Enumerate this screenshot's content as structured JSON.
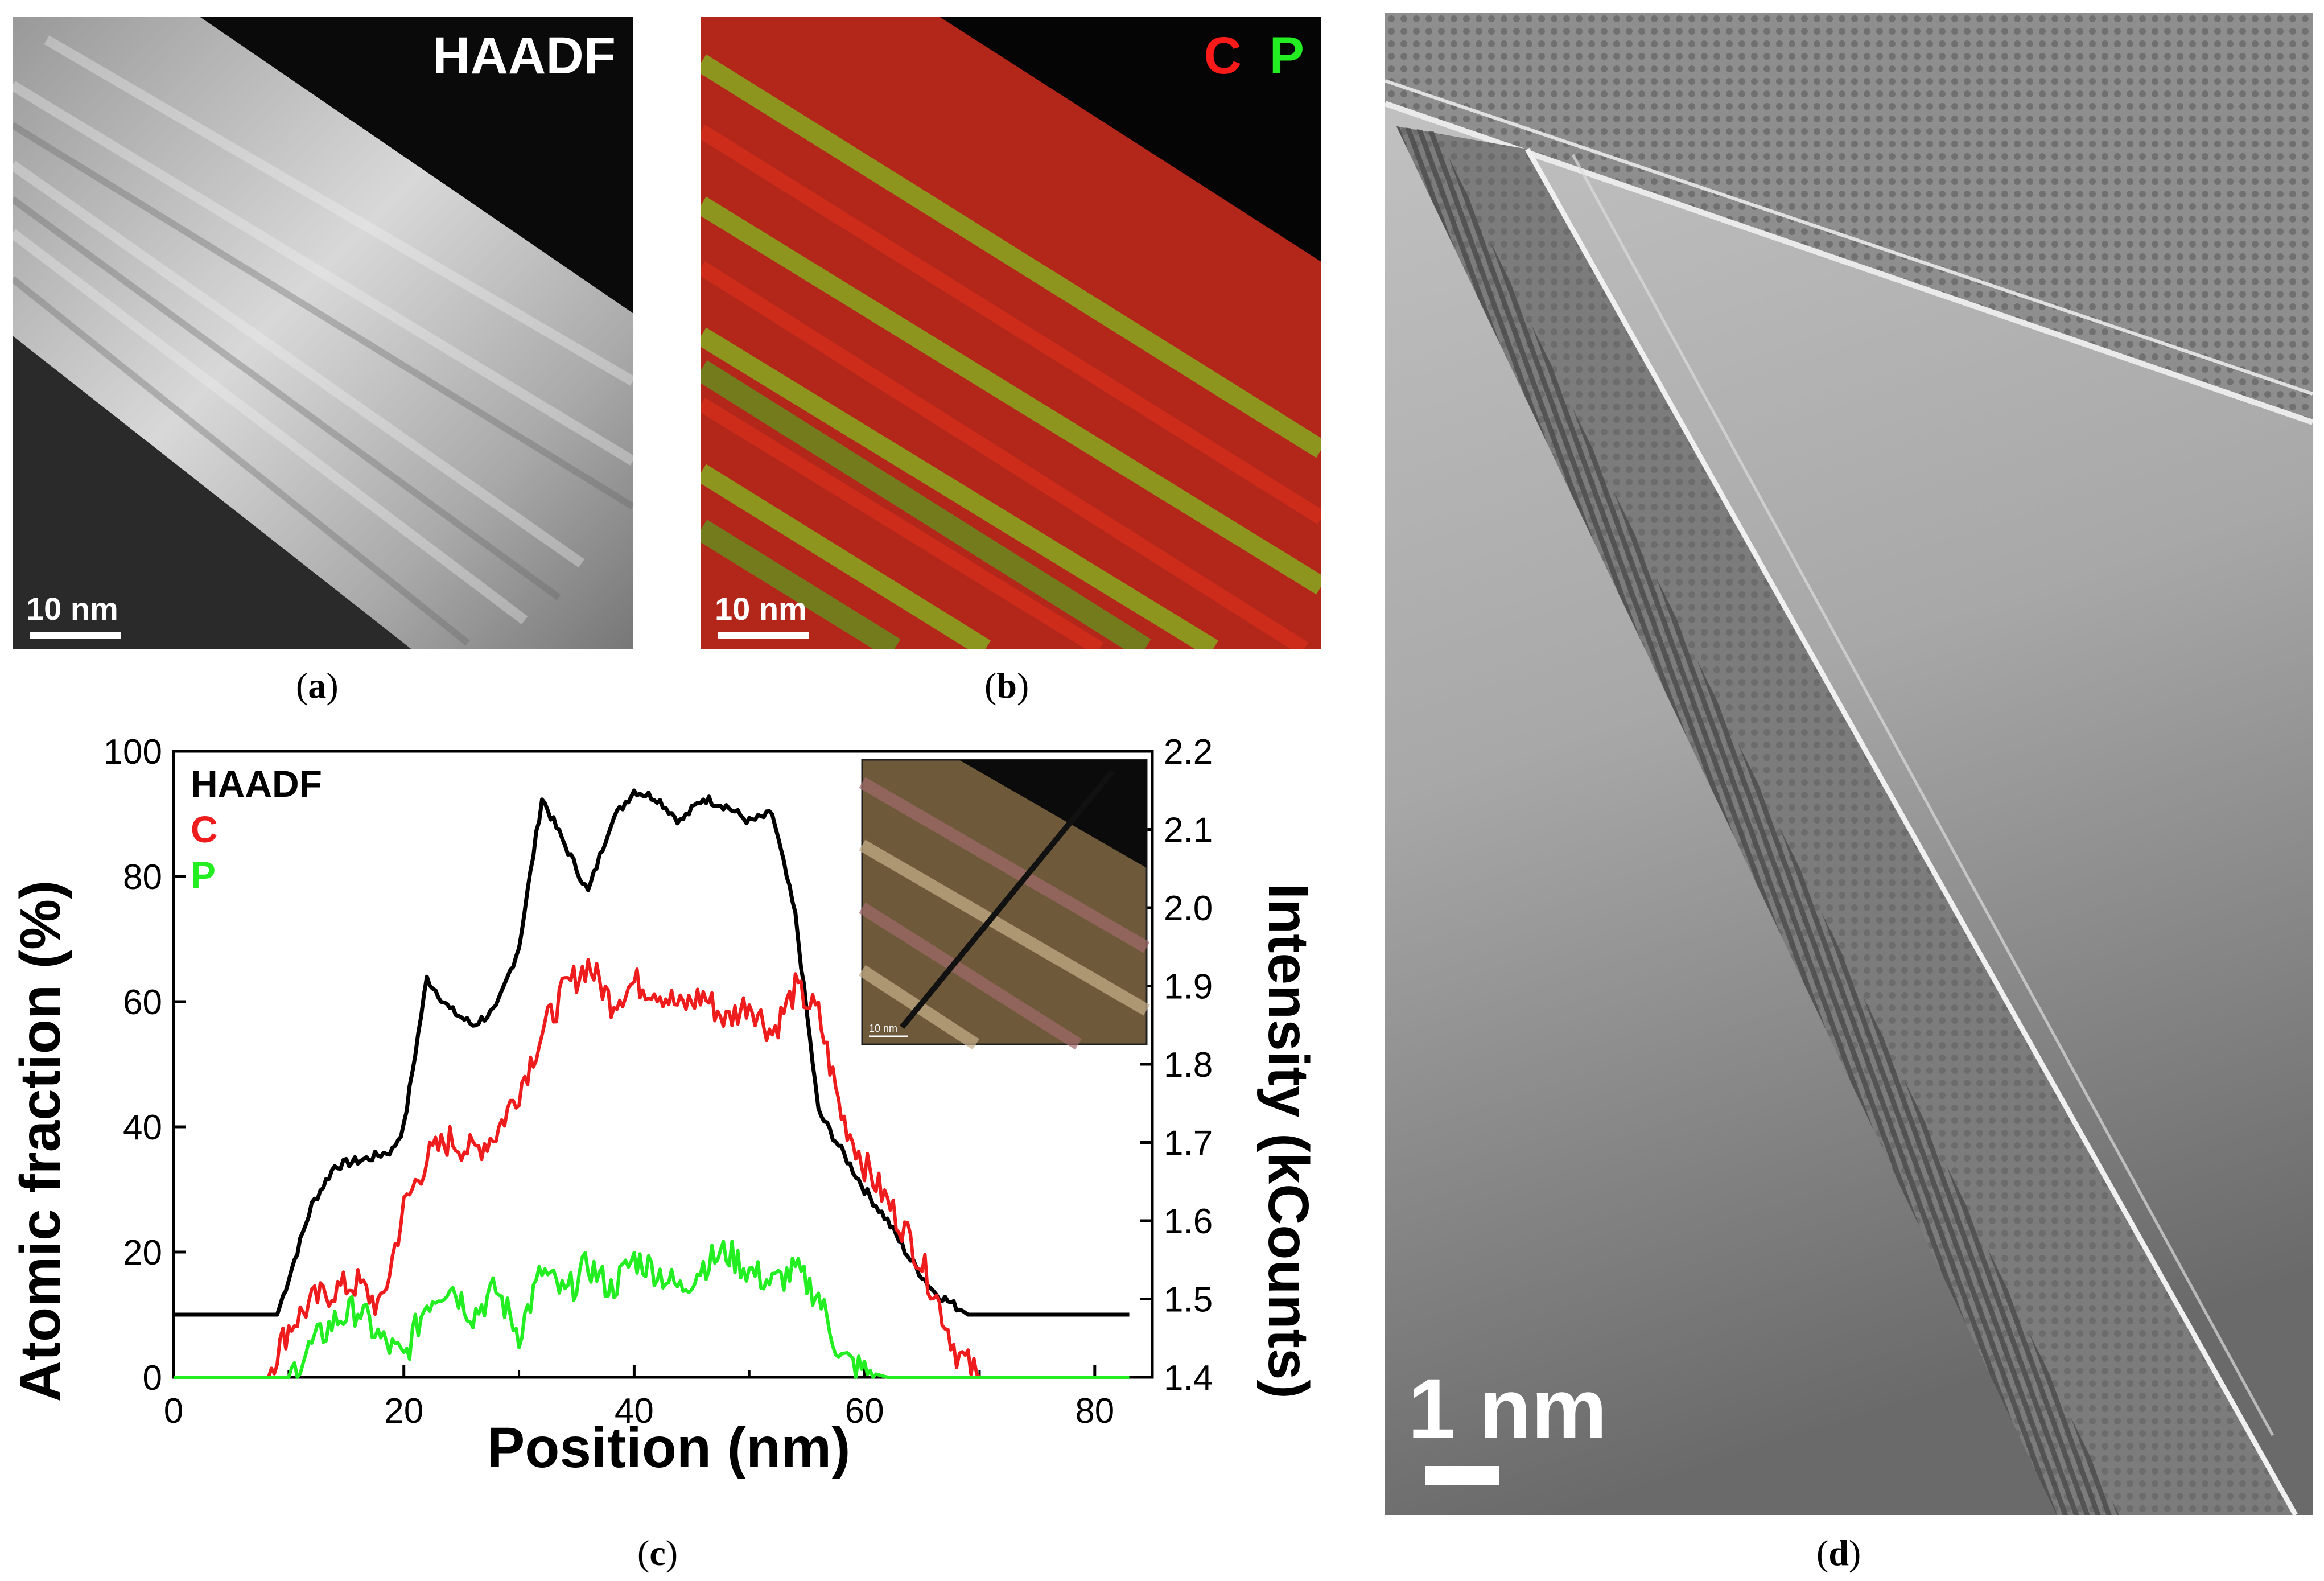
{
  "panel_a": {
    "label": "HAADF",
    "scale": "10 nm",
    "caption_letter": "a"
  },
  "panel_b": {
    "label_c": "C",
    "label_p": "P",
    "scale": "10 nm",
    "caption_letter": "b",
    "colors": {
      "C": "#ff1a1a",
      "P": "#22ee22"
    }
  },
  "panel_d": {
    "scale": "1 nm",
    "caption_letter": "d"
  },
  "panel_c": {
    "caption_letter": "c",
    "inset_scale": "10 nm"
  },
  "chart_data": {
    "type": "line",
    "xlabel": "Position (nm)",
    "ylabel": "Atomic fraction (%)",
    "ylabel_right": "Intensity (kCounts)",
    "xlim": [
      0,
      85
    ],
    "ylim": [
      0,
      100
    ],
    "ylim_right": [
      1.4,
      2.2
    ],
    "x_ticks": [
      "0",
      "20",
      "40",
      "60",
      "80"
    ],
    "y_ticks": [
      "0",
      "20",
      "40",
      "60",
      "80",
      "100"
    ],
    "y_right_ticks": [
      "1.4",
      "1.5",
      "1.6",
      "1.7",
      "1.8",
      "1.9",
      "2.0",
      "2.1",
      "2.2"
    ],
    "legend": [
      "HAADF",
      "C",
      "P"
    ],
    "legend_position": "top-left",
    "series": [
      {
        "name": "HAADF",
        "axis": "right",
        "color": "#000000",
        "x": [
          0,
          9,
          12,
          14,
          17,
          19,
          20,
          22,
          24,
          26,
          28,
          30,
          32,
          34,
          36,
          38,
          40,
          42,
          44,
          46,
          48,
          50,
          52,
          54,
          56,
          58,
          60,
          62,
          64,
          66,
          69,
          83
        ],
        "y": [
          1.48,
          1.48,
          1.62,
          1.67,
          1.68,
          1.69,
          1.72,
          1.91,
          1.87,
          1.85,
          1.87,
          1.95,
          2.14,
          2.08,
          2.02,
          2.11,
          2.15,
          2.14,
          2.11,
          2.14,
          2.13,
          2.11,
          2.12,
          1.99,
          1.74,
          1.69,
          1.64,
          1.6,
          1.55,
          1.51,
          1.48,
          1.48
        ]
      },
      {
        "name": "C",
        "axis": "left",
        "color": "#ee1c1c",
        "x": [
          0,
          8,
          10,
          12,
          14,
          16,
          18,
          20,
          22,
          24,
          26,
          28,
          30,
          32,
          34,
          36,
          38,
          40,
          42,
          44,
          46,
          48,
          50,
          52,
          54,
          56,
          58,
          60,
          62,
          64,
          66,
          68,
          70,
          83
        ],
        "y": [
          0,
          0,
          8,
          12,
          14,
          15,
          11,
          27,
          35,
          38,
          36,
          39,
          46,
          55,
          62,
          66,
          60,
          63,
          62,
          59,
          61,
          57,
          60,
          55,
          62,
          58,
          42,
          34,
          28,
          22,
          14,
          4,
          0,
          0
        ]
      },
      {
        "name": "P",
        "axis": "left",
        "color": "#22ee22",
        "x": [
          0,
          10,
          12,
          14,
          16,
          18,
          20,
          22,
          24,
          26,
          28,
          30,
          32,
          34,
          36,
          38,
          40,
          42,
          44,
          46,
          48,
          50,
          52,
          54,
          56,
          58,
          60,
          62,
          64,
          83
        ],
        "y": [
          0,
          0,
          5,
          9,
          11,
          6,
          3,
          12,
          15,
          10,
          14,
          7,
          17,
          13,
          18,
          14,
          19,
          17,
          14,
          18,
          20,
          17,
          15,
          17,
          13,
          3,
          1,
          0,
          0,
          0
        ]
      }
    ]
  }
}
